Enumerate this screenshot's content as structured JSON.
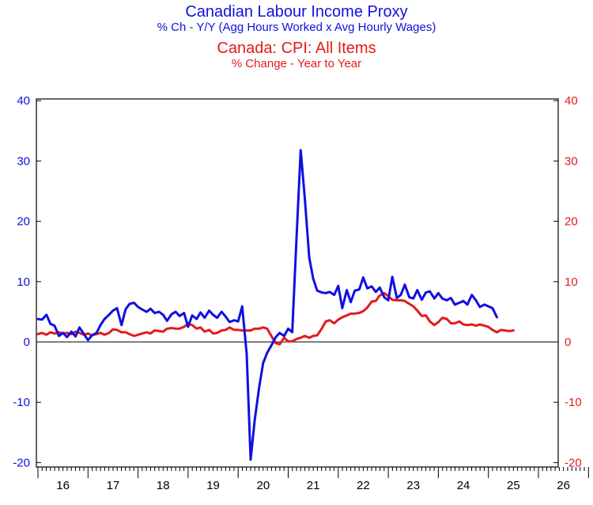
{
  "titles": {
    "series1_title": "Canadian Labour Income Proxy",
    "series1_subtitle": "% Ch - Y/Y (Agg Hours Worked x Avg Hourly Wages)",
    "series2_title": "Canada: CPI: All Items",
    "series2_subtitle": "% Change - Year to Year"
  },
  "colors": {
    "series1": "#1010e0",
    "series2": "#e41a1a",
    "axis": "#000000"
  },
  "chart_data": {
    "type": "line",
    "x_range": [
      2015.5,
      2027.0
    ],
    "ylim": [
      -21,
      40
    ],
    "y_ticks": [
      -20,
      -10,
      0,
      10,
      20,
      30,
      40
    ],
    "y_tick_labels": [
      "-20",
      "-10",
      "0",
      "10",
      "20",
      "30",
      "40"
    ],
    "x_ticks": [
      2016,
      2017,
      2018,
      2019,
      2020,
      2021,
      2022,
      2023,
      2024,
      2025,
      2026
    ],
    "x_tick_labels": [
      "16",
      "17",
      "18",
      "19",
      "20",
      "21",
      "22",
      "23",
      "24",
      "25",
      "26"
    ],
    "zero_line": true,
    "grid": false,
    "series": [
      {
        "points": [
          [
            2015.5,
            3.8
          ],
          [
            2015.58,
            3.7
          ],
          [
            2015.67,
            4.5
          ],
          [
            2015.75,
            3.0
          ],
          [
            2015.83,
            2.7
          ],
          [
            2015.92,
            1.0
          ],
          [
            2016.0,
            1.5
          ],
          [
            2016.08,
            0.8
          ],
          [
            2016.17,
            1.7
          ],
          [
            2016.25,
            0.9
          ],
          [
            2016.33,
            2.4
          ],
          [
            2016.42,
            1.3
          ],
          [
            2016.5,
            0.3
          ],
          [
            2016.58,
            1.1
          ],
          [
            2016.67,
            1.5
          ],
          [
            2016.75,
            2.8
          ],
          [
            2016.83,
            3.8
          ],
          [
            2016.92,
            4.5
          ],
          [
            2017.0,
            5.2
          ],
          [
            2017.08,
            5.6
          ],
          [
            2017.17,
            2.8
          ],
          [
            2017.25,
            5.4
          ],
          [
            2017.33,
            6.3
          ],
          [
            2017.42,
            6.5
          ],
          [
            2017.5,
            5.8
          ],
          [
            2017.58,
            5.4
          ],
          [
            2017.67,
            5.0
          ],
          [
            2017.75,
            5.5
          ],
          [
            2017.83,
            4.8
          ],
          [
            2017.92,
            5.0
          ],
          [
            2018.0,
            4.5
          ],
          [
            2018.08,
            3.5
          ],
          [
            2018.17,
            4.6
          ],
          [
            2018.25,
            5.0
          ],
          [
            2018.33,
            4.3
          ],
          [
            2018.42,
            4.8
          ],
          [
            2018.5,
            2.5
          ],
          [
            2018.58,
            4.4
          ],
          [
            2018.67,
            3.8
          ],
          [
            2018.75,
            4.9
          ],
          [
            2018.83,
            4.0
          ],
          [
            2018.92,
            5.2
          ],
          [
            2019.0,
            4.5
          ],
          [
            2019.08,
            4.0
          ],
          [
            2019.17,
            5.0
          ],
          [
            2019.25,
            4.2
          ],
          [
            2019.33,
            3.3
          ],
          [
            2019.42,
            3.6
          ],
          [
            2019.5,
            3.4
          ],
          [
            2019.58,
            5.9
          ],
          [
            2019.67,
            -2.0
          ],
          [
            2019.75,
            -19.5
          ],
          [
            2019.83,
            -13.0
          ],
          [
            2019.92,
            -7.5
          ],
          [
            2020.0,
            -3.5
          ],
          [
            2020.08,
            -1.8
          ],
          [
            2020.17,
            -0.5
          ],
          [
            2020.25,
            0.8
          ],
          [
            2020.33,
            1.5
          ],
          [
            2020.42,
            1.0
          ],
          [
            2020.5,
            2.2
          ],
          [
            2020.58,
            1.6
          ],
          [
            2020.67,
            18.0
          ],
          [
            2020.75,
            31.8
          ],
          [
            2020.83,
            24.0
          ],
          [
            2020.92,
            14.0
          ],
          [
            2021.0,
            10.5
          ],
          [
            2021.08,
            8.5
          ],
          [
            2021.17,
            8.2
          ],
          [
            2021.25,
            8.1
          ],
          [
            2021.33,
            8.3
          ],
          [
            2021.42,
            7.8
          ],
          [
            2021.5,
            9.3
          ],
          [
            2021.58,
            5.6
          ],
          [
            2021.67,
            8.6
          ],
          [
            2021.75,
            6.6
          ],
          [
            2021.83,
            8.5
          ],
          [
            2021.92,
            8.7
          ],
          [
            2022.0,
            10.7
          ],
          [
            2022.08,
            8.9
          ],
          [
            2022.17,
            9.2
          ],
          [
            2022.25,
            8.3
          ],
          [
            2022.33,
            9.0
          ],
          [
            2022.42,
            7.4
          ],
          [
            2022.5,
            6.9
          ],
          [
            2022.58,
            10.8
          ],
          [
            2022.67,
            7.3
          ],
          [
            2022.75,
            7.8
          ],
          [
            2022.83,
            9.5
          ],
          [
            2022.92,
            7.4
          ],
          [
            2023.0,
            7.2
          ],
          [
            2023.08,
            8.6
          ],
          [
            2023.17,
            7.0
          ],
          [
            2023.25,
            8.2
          ],
          [
            2023.33,
            8.4
          ],
          [
            2023.42,
            7.2
          ],
          [
            2023.5,
            8.1
          ],
          [
            2023.58,
            7.2
          ],
          [
            2023.67,
            6.9
          ],
          [
            2023.75,
            7.3
          ],
          [
            2023.83,
            6.2
          ],
          [
            2023.92,
            6.5
          ],
          [
            2024.0,
            6.8
          ],
          [
            2024.08,
            6.2
          ],
          [
            2024.17,
            7.8
          ],
          [
            2024.25,
            6.9
          ],
          [
            2024.33,
            5.8
          ],
          [
            2024.42,
            6.2
          ],
          [
            2024.5,
            5.9
          ],
          [
            2024.58,
            5.6
          ],
          [
            2024.67,
            4.1
          ]
        ]
      },
      {
        "points": [
          [
            2015.5,
            1.3
          ],
          [
            2015.58,
            1.5
          ],
          [
            2015.67,
            1.2
          ],
          [
            2015.75,
            1.6
          ],
          [
            2015.83,
            1.4
          ],
          [
            2015.92,
            1.6
          ],
          [
            2016.0,
            1.4
          ],
          [
            2016.08,
            1.5
          ],
          [
            2016.17,
            1.3
          ],
          [
            2016.25,
            1.7
          ],
          [
            2016.33,
            1.5
          ],
          [
            2016.42,
            1.2
          ],
          [
            2016.5,
            1.4
          ],
          [
            2016.58,
            1.1
          ],
          [
            2016.67,
            1.3
          ],
          [
            2016.75,
            1.5
          ],
          [
            2016.83,
            1.2
          ],
          [
            2016.92,
            1.5
          ],
          [
            2017.0,
            2.1
          ],
          [
            2017.08,
            2.0
          ],
          [
            2017.17,
            1.6
          ],
          [
            2017.25,
            1.6
          ],
          [
            2017.33,
            1.3
          ],
          [
            2017.42,
            1.0
          ],
          [
            2017.5,
            1.2
          ],
          [
            2017.58,
            1.4
          ],
          [
            2017.67,
            1.6
          ],
          [
            2017.75,
            1.4
          ],
          [
            2017.83,
            1.9
          ],
          [
            2017.92,
            1.8
          ],
          [
            2018.0,
            1.7
          ],
          [
            2018.08,
            2.2
          ],
          [
            2018.17,
            2.3
          ],
          [
            2018.25,
            2.2
          ],
          [
            2018.33,
            2.2
          ],
          [
            2018.42,
            2.5
          ],
          [
            2018.5,
            3.0
          ],
          [
            2018.58,
            2.8
          ],
          [
            2018.67,
            2.2
          ],
          [
            2018.75,
            2.4
          ],
          [
            2018.83,
            1.7
          ],
          [
            2018.92,
            2.0
          ],
          [
            2019.0,
            1.4
          ],
          [
            2019.08,
            1.5
          ],
          [
            2019.17,
            1.9
          ],
          [
            2019.25,
            2.0
          ],
          [
            2019.33,
            2.4
          ],
          [
            2019.42,
            2.0
          ],
          [
            2019.5,
            2.0
          ],
          [
            2019.58,
            1.9
          ],
          [
            2019.67,
            1.9
          ],
          [
            2019.75,
            1.9
          ],
          [
            2019.83,
            2.2
          ],
          [
            2019.92,
            2.2
          ],
          [
            2020.0,
            2.4
          ],
          [
            2020.08,
            2.2
          ],
          [
            2020.17,
            0.9
          ],
          [
            2020.25,
            -0.2
          ],
          [
            2020.33,
            -0.4
          ],
          [
            2020.42,
            0.7
          ],
          [
            2020.5,
            0.1
          ],
          [
            2020.58,
            0.1
          ],
          [
            2020.67,
            0.5
          ],
          [
            2020.75,
            0.7
          ],
          [
            2020.83,
            1.0
          ],
          [
            2020.92,
            0.7
          ],
          [
            2021.0,
            1.0
          ],
          [
            2021.08,
            1.1
          ],
          [
            2021.17,
            2.2
          ],
          [
            2021.25,
            3.4
          ],
          [
            2021.33,
            3.6
          ],
          [
            2021.42,
            3.1
          ],
          [
            2021.5,
            3.7
          ],
          [
            2021.58,
            4.1
          ],
          [
            2021.67,
            4.4
          ],
          [
            2021.75,
            4.7
          ],
          [
            2021.83,
            4.7
          ],
          [
            2021.92,
            4.8
          ],
          [
            2022.0,
            5.1
          ],
          [
            2022.08,
            5.7
          ],
          [
            2022.17,
            6.7
          ],
          [
            2022.25,
            6.8
          ],
          [
            2022.33,
            7.7
          ],
          [
            2022.42,
            8.1
          ],
          [
            2022.5,
            7.6
          ],
          [
            2022.58,
            7.0
          ],
          [
            2022.67,
            6.9
          ],
          [
            2022.75,
            6.9
          ],
          [
            2022.83,
            6.8
          ],
          [
            2022.92,
            6.3
          ],
          [
            2023.0,
            5.9
          ],
          [
            2023.08,
            5.2
          ],
          [
            2023.17,
            4.3
          ],
          [
            2023.25,
            4.4
          ],
          [
            2023.33,
            3.4
          ],
          [
            2023.42,
            2.8
          ],
          [
            2023.5,
            3.3
          ],
          [
            2023.58,
            4.0
          ],
          [
            2023.67,
            3.8
          ],
          [
            2023.75,
            3.1
          ],
          [
            2023.83,
            3.1
          ],
          [
            2023.92,
            3.4
          ],
          [
            2024.0,
            2.9
          ],
          [
            2024.08,
            2.8
          ],
          [
            2024.17,
            2.9
          ],
          [
            2024.25,
            2.7
          ],
          [
            2024.33,
            2.9
          ],
          [
            2024.42,
            2.7
          ],
          [
            2024.5,
            2.5
          ],
          [
            2024.58,
            2.0
          ],
          [
            2024.67,
            1.6
          ],
          [
            2024.75,
            2.0
          ],
          [
            2024.83,
            1.9
          ],
          [
            2024.92,
            1.8
          ],
          [
            2025.0,
            1.9
          ]
        ]
      }
    ]
  }
}
